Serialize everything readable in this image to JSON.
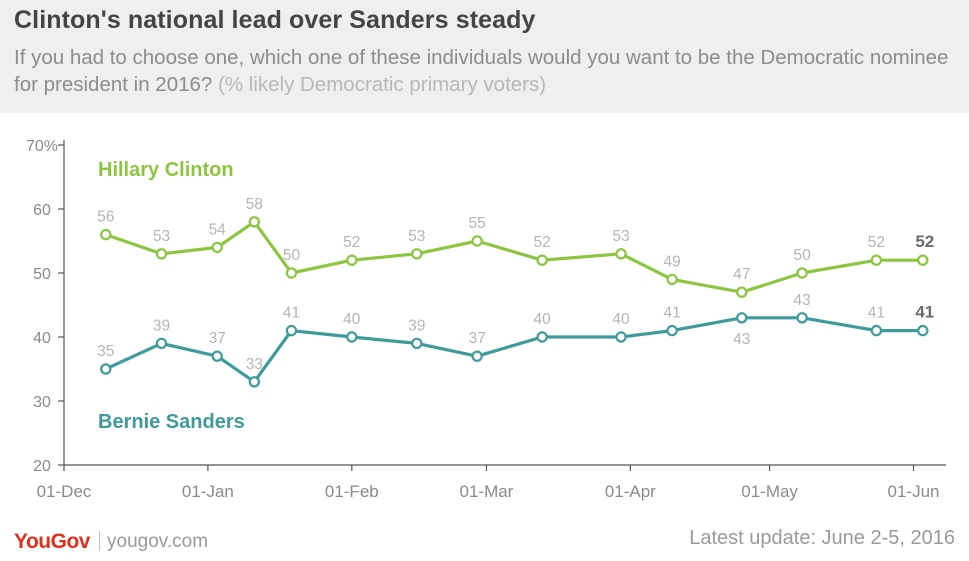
{
  "header": {
    "title": "Clinton's national lead over Sanders steady",
    "subtitle": "If you had to choose one, which one of these individuals would you want to be the Democratic nominee for president in 2016?",
    "subtitle_note": "(% likely Democratic primary voters)"
  },
  "footer": {
    "logo": "YouGov",
    "site": "yougov.com",
    "update": "Latest update: June 2-5, 2016"
  },
  "colors": {
    "clinton": "#8cc63f",
    "sanders": "#3f9b9b",
    "axis": "#555555",
    "tick_text": "#8a8a8a",
    "data_label": "#b5b5b5",
    "end_label": "#6b6b6b",
    "grid": "#dddddd"
  },
  "chart_data": {
    "type": "line",
    "y_ticks": [
      "70%",
      "60",
      "50",
      "40",
      "30",
      "20"
    ],
    "y_tick_values": [
      70,
      60,
      50,
      40,
      30,
      20
    ],
    "ylim": [
      20,
      70
    ],
    "x_ticks": [
      {
        "label": "01-Dec",
        "date": "2015-12-01"
      },
      {
        "label": "01-Jan",
        "date": "2016-01-01"
      },
      {
        "label": "01-Feb",
        "date": "2016-02-01"
      },
      {
        "label": "01-Mar",
        "date": "2016-03-01"
      },
      {
        "label": "01-Apr",
        "date": "2016-04-01"
      },
      {
        "label": "01-May",
        "date": "2016-05-01"
      },
      {
        "label": "01-Jun",
        "date": "2016-06-01"
      }
    ],
    "x_range": [
      "2015-12-01",
      "2016-06-08"
    ],
    "dates": [
      "2015-12-10",
      "2015-12-22",
      "2016-01-03",
      "2016-01-11",
      "2016-01-19",
      "2016-02-01",
      "2016-02-15",
      "2016-02-28",
      "2016-03-13",
      "2016-03-30",
      "2016-04-10",
      "2016-04-25",
      "2016-05-08",
      "2016-05-24",
      "2016-06-03"
    ],
    "series": [
      {
        "name": "Hillary Clinton",
        "color_key": "clinton",
        "values": [
          56,
          53,
          54,
          58,
          50,
          52,
          53,
          55,
          52,
          53,
          49,
          47,
          50,
          52,
          52
        ]
      },
      {
        "name": "Bernie Sanders",
        "color_key": "sanders",
        "values": [
          35,
          39,
          37,
          33,
          41,
          40,
          39,
          37,
          40,
          40,
          41,
          43,
          43,
          41,
          41
        ]
      }
    ]
  }
}
